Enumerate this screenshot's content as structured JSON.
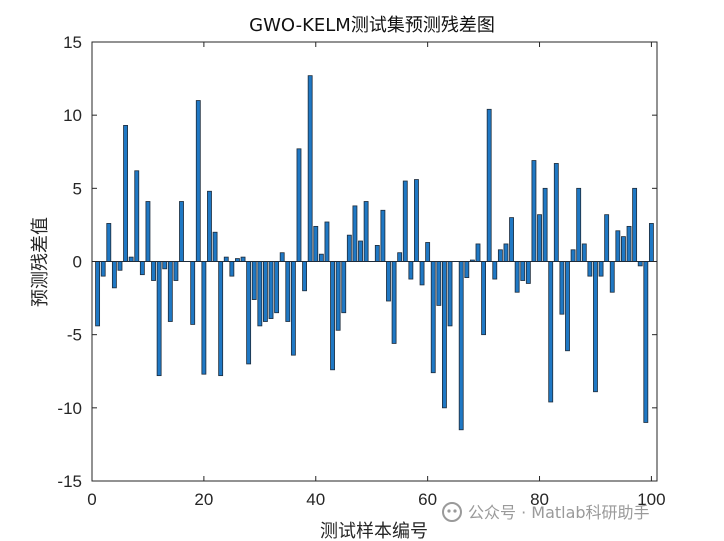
{
  "watermark": {
    "text": "公众号 · Matlab科研助手",
    "icon": "wechat-official-account-icon"
  },
  "colors": {
    "bar_fill": "#1f78c4",
    "bar_edge": "#1d2b3a",
    "axis": "#262626"
  },
  "chart_data": {
    "type": "bar",
    "title": "GWO-KELM测试集预测残差图",
    "xlabel": "测试样本编号",
    "ylabel": "预测残差值",
    "xlim": [
      0,
      101
    ],
    "ylim": [
      -15,
      15
    ],
    "xticks": [
      0,
      20,
      40,
      60,
      80,
      100
    ],
    "yticks": [
      15,
      10,
      5,
      0,
      -5,
      -10,
      -15
    ],
    "x": [
      1,
      2,
      3,
      4,
      5,
      6,
      7,
      8,
      9,
      10,
      11,
      12,
      13,
      14,
      15,
      16,
      17,
      18,
      19,
      20,
      21,
      22,
      23,
      24,
      25,
      26,
      27,
      28,
      29,
      30,
      31,
      32,
      33,
      34,
      35,
      36,
      37,
      38,
      39,
      40,
      41,
      42,
      43,
      44,
      45,
      46,
      47,
      48,
      49,
      50,
      51,
      52,
      53,
      54,
      55,
      56,
      57,
      58,
      59,
      60,
      61,
      62,
      63,
      64,
      65,
      66,
      67,
      68,
      69,
      70,
      71,
      72,
      73,
      74,
      75,
      76,
      77,
      78,
      79,
      80,
      81,
      82,
      83,
      84,
      85,
      86,
      87,
      88,
      89,
      90,
      91,
      92,
      93,
      94,
      95,
      96,
      97,
      98,
      99,
      100
    ],
    "values": [
      -4.4,
      -1.0,
      2.6,
      -1.8,
      -0.6,
      9.3,
      0.3,
      6.2,
      -0.9,
      4.1,
      -1.3,
      -7.8,
      -0.5,
      -4.1,
      -1.3,
      4.1,
      0.0,
      -4.3,
      11.0,
      -7.7,
      4.8,
      2.0,
      -7.8,
      0.3,
      -1.0,
      0.2,
      0.3,
      -7.0,
      -2.6,
      -4.4,
      -4.1,
      -3.9,
      -3.5,
      0.6,
      -4.1,
      -6.4,
      7.7,
      -2.0,
      12.7,
      2.4,
      0.5,
      2.7,
      -7.4,
      -4.7,
      -3.5,
      1.8,
      3.8,
      1.4,
      4.1,
      0.0,
      1.1,
      3.5,
      -2.7,
      -5.6,
      0.6,
      5.5,
      -1.2,
      5.6,
      -1.6,
      1.3,
      -7.6,
      -3.0,
      -10.0,
      -4.4,
      0.0,
      -11.5,
      -1.1,
      0.1,
      1.2,
      -5.0,
      10.4,
      -1.2,
      0.8,
      1.2,
      3.0,
      -2.1,
      -1.3,
      -1.5,
      6.9,
      3.2,
      5.0,
      -9.6,
      6.7,
      -3.6,
      -6.1,
      0.8,
      5.0,
      1.2,
      -1.0,
      -8.9,
      -1.0,
      3.2,
      -2.1,
      2.1,
      1.7,
      2.4,
      5.0,
      -0.3,
      -11.0,
      2.6
    ]
  }
}
